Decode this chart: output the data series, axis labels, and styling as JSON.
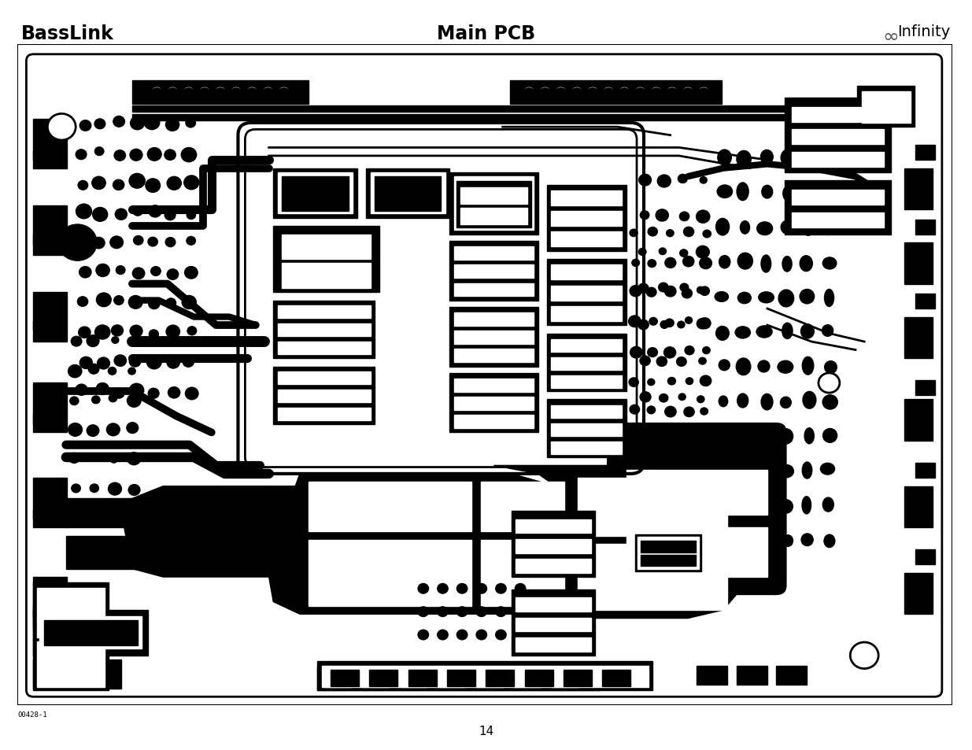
{
  "title_left": "BassLink",
  "title_center": "Main PCB",
  "page_number": "14",
  "part_number": "00428-1",
  "bg_color": "#ffffff",
  "text_color": "#000000",
  "figure_width": 12.35,
  "figure_height": 9.54,
  "dpi": 100,
  "infinity_symbol": "∞",
  "infinity_text": "Infinity"
}
